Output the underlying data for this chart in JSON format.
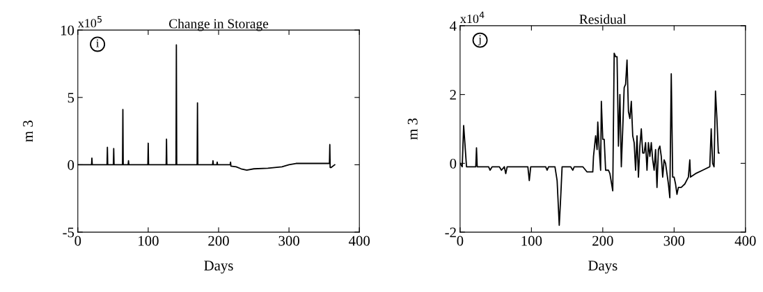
{
  "chart_data": [
    {
      "type": "line",
      "title": "Change in Storage",
      "xlabel": "Days",
      "ylabel": "m 3",
      "annotations": [
        "x10$^{5}$",
        "i"
      ],
      "xlim": [
        0,
        400
      ],
      "ylim": [
        -5,
        10
      ],
      "xticks": [
        0,
        100,
        200,
        300,
        400
      ],
      "yticks": [
        -5,
        0,
        5,
        10
      ],
      "series": [
        {
          "color": "#000000",
          "x": [
            0,
            19.5,
            20,
            20.5,
            41.5,
            42,
            42.5,
            50.5,
            51,
            51.5,
            63.5,
            64,
            64.5,
            71.5,
            72,
            72.5,
            99.5,
            100,
            100.5,
            125.5,
            126,
            126.5,
            139.5,
            140,
            140.5,
            169.5,
            170,
            170.5,
            191.5,
            192,
            192.5,
            197.5,
            198,
            198.5,
            216.5,
            217,
            217.5,
            225,
            232,
            240,
            250,
            270,
            290,
            300,
            310,
            357.5,
            358,
            358.5,
            360,
            365
          ],
          "values": [
            0,
            0,
            0.5,
            0,
            0,
            1.3,
            0,
            0,
            1.2,
            0,
            0,
            4.1,
            0,
            0,
            0.3,
            0,
            0,
            1.6,
            0,
            0,
            1.9,
            0,
            0,
            8.9,
            0,
            0,
            4.6,
            0,
            0,
            0.3,
            0,
            0,
            0.2,
            0,
            0,
            0.2,
            -0.1,
            -0.15,
            -0.3,
            -0.4,
            -0.3,
            -0.25,
            -0.15,
            0,
            0.1,
            0.1,
            1.5,
            -0.2,
            -0.2,
            0
          ]
        }
      ]
    },
    {
      "type": "line",
      "title": "Residual",
      "xlabel": "Days",
      "ylabel": "m 3",
      "annotations": [
        "x10$^{4}$",
        "j"
      ],
      "xlim": [
        0,
        400
      ],
      "ylim": [
        -2,
        4
      ],
      "xticks": [
        0,
        100,
        200,
        300,
        400
      ],
      "yticks": [
        -2,
        0,
        2,
        4
      ],
      "series": [
        {
          "color": "#000000",
          "x": [
            0,
            3,
            5,
            7,
            9,
            22,
            23,
            24,
            40,
            42,
            45,
            55,
            58,
            62,
            64,
            66,
            95,
            97,
            99,
            120,
            122,
            124,
            133,
            136,
            139,
            141,
            143,
            155,
            158,
            160,
            172,
            178,
            186,
            187,
            190,
            192,
            193,
            195,
            197,
            198,
            200,
            202,
            204,
            208,
            210,
            214,
            216,
            218,
            220,
            222,
            224,
            226,
            228,
            230,
            232,
            234,
            236,
            238,
            240,
            242,
            244,
            246,
            248,
            250,
            252,
            254,
            256,
            258,
            260,
            262,
            264,
            266,
            268,
            270,
            272,
            274,
            276,
            278,
            280,
            282,
            284,
            286,
            288,
            290,
            292,
            294,
            296,
            298,
            300,
            302,
            304,
            306,
            310,
            315,
            320,
            322,
            323,
            330,
            340,
            350,
            352,
            354,
            356,
            358,
            360,
            362,
            363
          ],
          "values": [
            0,
            -0.1,
            1.1,
            0.5,
            -0.1,
            -0.1,
            0.45,
            -0.1,
            -0.1,
            -0.2,
            -0.1,
            -0.1,
            -0.2,
            -0.1,
            -0.3,
            -0.1,
            -0.1,
            -0.5,
            -0.1,
            -0.1,
            -0.2,
            -0.1,
            -0.1,
            -0.5,
            -1.8,
            -1.0,
            -0.1,
            -0.1,
            -0.2,
            -0.1,
            -0.1,
            -0.25,
            -0.25,
            0.2,
            0.8,
            0.4,
            1.2,
            0.4,
            -0.2,
            1.8,
            0.7,
            0.7,
            -0.2,
            -0.2,
            -0.3,
            -0.8,
            3.2,
            3.1,
            3.1,
            0.5,
            2.0,
            -0.1,
            1.0,
            2.2,
            2.3,
            3.0,
            1.5,
            1.3,
            1.8,
            0.8,
            0.6,
            -0.2,
            0.8,
            -0.4,
            0.5,
            1.0,
            0.3,
            0.3,
            0.6,
            -0.2,
            0.6,
            0.2,
            0.6,
            0.1,
            -0.2,
            0.4,
            -0.7,
            0.4,
            0.5,
            0.2,
            -0.4,
            0.1,
            0.0,
            -0.3,
            -0.6,
            -1.0,
            2.6,
            -0.4,
            -0.4,
            -0.6,
            -0.9,
            -0.7,
            -0.7,
            -0.6,
            -0.4,
            0.1,
            -0.4,
            -0.3,
            -0.2,
            -0.1,
            1.0,
            0.0,
            -0.1,
            2.1,
            1.3,
            0.3,
            0.3
          ]
        }
      ]
    }
  ]
}
